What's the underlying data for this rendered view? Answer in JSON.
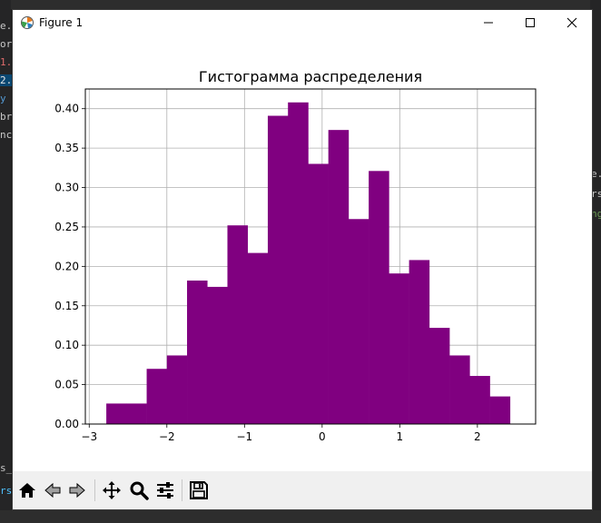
{
  "window": {
    "title": "Figure 1"
  },
  "background": {
    "fragments": [
      "e.",
      "or",
      "1.",
      "2.",
      "y",
      "br",
      "nc",
      "e.",
      "rs",
      "ng",
      "s_1",
      "rs"
    ]
  },
  "toolbar": {
    "buttons": [
      {
        "name": "home-icon",
        "label": "Home"
      },
      {
        "name": "back-icon",
        "label": "Back"
      },
      {
        "name": "forward-icon",
        "label": "Forward"
      },
      {
        "name": "pan-icon",
        "label": "Pan"
      },
      {
        "name": "zoom-icon",
        "label": "Zoom"
      },
      {
        "name": "configure-subplots-icon",
        "label": "Configure subplots"
      },
      {
        "name": "save-icon",
        "label": "Save"
      }
    ]
  },
  "chart_data": {
    "type": "bar",
    "title": "Гистограмма распределения",
    "xlabel": "",
    "ylabel": "",
    "color": "#800080",
    "grid": true,
    "xlim": [
      -3.05,
      2.75
    ],
    "ylim": [
      0,
      0.425
    ],
    "x_ticks": [
      -3,
      -2,
      -1,
      0,
      1,
      2
    ],
    "x_tick_labels": [
      "−3",
      "−2",
      "−1",
      "0",
      "1",
      "2"
    ],
    "y_ticks": [
      0,
      0.05,
      0.1,
      0.15,
      0.2,
      0.25,
      0.3,
      0.35,
      0.4
    ],
    "y_tick_labels": [
      "0.00",
      "0.05",
      "0.10",
      "0.15",
      "0.20",
      "0.25",
      "0.30",
      "0.35",
      "0.40"
    ],
    "bin_edges": [
      -2.78,
      -2.52,
      -2.26,
      -2.0,
      -1.74,
      -1.48,
      -1.22,
      -0.96,
      -0.7,
      -0.44,
      -0.18,
      0.08,
      0.34,
      0.6,
      0.86,
      1.12,
      1.38,
      1.64,
      1.9,
      2.16,
      2.42
    ],
    "values": [
      0.026,
      0.026,
      0.07,
      0.087,
      0.182,
      0.174,
      0.252,
      0.217,
      0.391,
      0.408,
      0.33,
      0.373,
      0.26,
      0.321,
      0.191,
      0.208,
      0.122,
      0.087,
      0.061,
      0.035
    ]
  }
}
